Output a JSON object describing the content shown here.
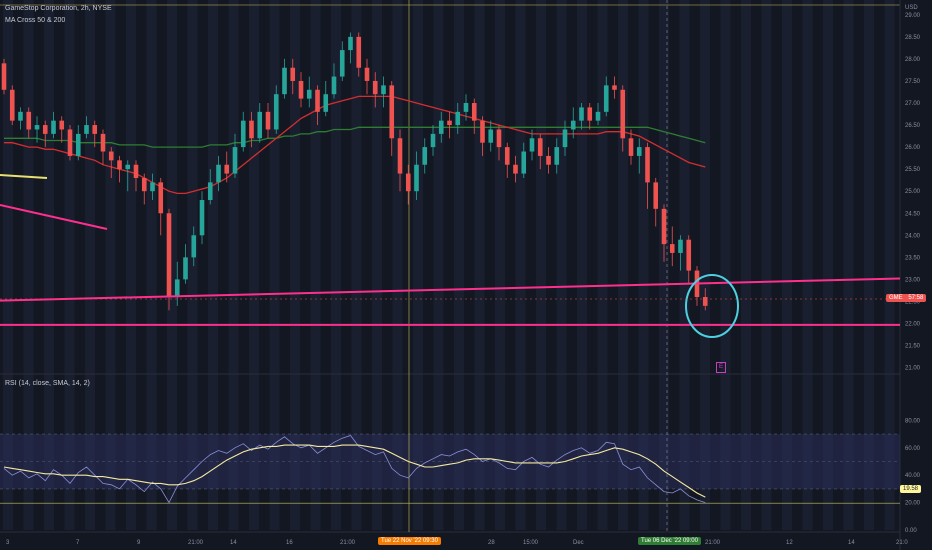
{
  "header": {
    "symbol_line": "GameStop Corporation, 2h, NYSE",
    "indicator_ma": "MA Cross 50 & 200",
    "indicator_rsi": "RSI (14, close, SMA, 14, 2)"
  },
  "price_axis": {
    "currency": "USD",
    "ticks": [
      "29.00",
      "28.50",
      "28.00",
      "27.50",
      "27.00",
      "26.50",
      "26.00",
      "25.50",
      "25.00",
      "24.50",
      "24.00",
      "23.50",
      "23.00",
      "22.50",
      "22.00",
      "21.50",
      "21.00"
    ],
    "price_tag_symbol": "GME",
    "price_tag_value": "57:58"
  },
  "rsi_axis": {
    "ticks": [
      "80.00",
      "60.00",
      "40.00",
      "20.00",
      "0.00"
    ],
    "rsi_tag_value": "19.58"
  },
  "time_axis": {
    "labels": [
      "3",
      "7",
      "9",
      "21:00",
      "14",
      "16",
      "21:00",
      "28",
      "15:00",
      "Dec",
      "21:00",
      "12",
      "14",
      "21:0"
    ],
    "crosshair_label_1": "Tue 22 Nov '22  09:30",
    "crosshair_label_2": "Tue 06 Dec '22  09:00"
  },
  "earnings_marker": "E",
  "colors": {
    "background": "#131722",
    "up_candle": "#26a69a",
    "down_candle": "#ef5350",
    "ma50": "#d32f2f",
    "ma200": "#2e7d32",
    "rsi_line": "#8a8fd8",
    "rsi_ma": "#f5e9a0",
    "support_line": "#ff2f8e",
    "circle": "#4dd0e1",
    "yellow_trend": "#e8e070",
    "crosshair_label_1_bg": "#f57c00",
    "crosshair_label_2_bg": "#2e7d32",
    "price_tag_bg": "#ef5350",
    "rsi_tag_bg": "#fff59d"
  },
  "chart_data": {
    "type": "candlestick",
    "title": "GameStop Corporation, 2h, NYSE",
    "ylim": [
      20.9,
      29.2
    ],
    "rsi_ylim": [
      0,
      100
    ],
    "candles": [
      [
        27.9,
        27.3,
        28.0,
        27.2
      ],
      [
        27.3,
        26.6,
        27.4,
        26.5
      ],
      [
        26.6,
        26.8,
        26.9,
        26.4
      ],
      [
        26.8,
        26.4,
        26.9,
        26.2
      ],
      [
        26.4,
        26.5,
        26.7,
        26.1
      ],
      [
        26.5,
        26.3,
        26.6,
        26.0
      ],
      [
        26.3,
        26.6,
        26.8,
        26.2
      ],
      [
        26.6,
        26.4,
        26.7,
        26.1
      ],
      [
        26.4,
        25.8,
        26.5,
        25.7
      ],
      [
        25.8,
        26.3,
        26.5,
        25.7
      ],
      [
        26.3,
        26.5,
        26.7,
        26.2
      ],
      [
        26.5,
        26.3,
        26.6,
        26.0
      ],
      [
        26.3,
        25.9,
        26.4,
        25.6
      ],
      [
        25.9,
        25.7,
        26.0,
        25.3
      ],
      [
        25.7,
        25.5,
        25.8,
        25.2
      ],
      [
        25.5,
        25.6,
        25.7,
        25.0
      ],
      [
        25.6,
        25.3,
        25.7,
        25.0
      ],
      [
        25.3,
        25.0,
        25.4,
        24.7
      ],
      [
        25.0,
        25.2,
        25.4,
        24.8
      ],
      [
        25.2,
        24.5,
        25.3,
        24.0
      ],
      [
        24.5,
        22.6,
        24.6,
        22.3
      ],
      [
        22.6,
        23.0,
        23.4,
        22.4
      ],
      [
        23.0,
        23.5,
        23.8,
        22.9
      ],
      [
        23.5,
        24.0,
        24.2,
        23.3
      ],
      [
        24.0,
        24.8,
        25.0,
        23.8
      ],
      [
        24.8,
        25.2,
        25.5,
        24.7
      ],
      [
        25.2,
        25.6,
        25.8,
        25.0
      ],
      [
        25.6,
        25.4,
        25.9,
        25.2
      ],
      [
        25.4,
        26.0,
        26.3,
        25.3
      ],
      [
        26.0,
        26.6,
        26.8,
        25.9
      ],
      [
        26.6,
        26.2,
        26.8,
        26.0
      ],
      [
        26.2,
        26.8,
        27.0,
        26.1
      ],
      [
        26.8,
        26.4,
        27.0,
        26.2
      ],
      [
        26.4,
        27.2,
        27.4,
        26.3
      ],
      [
        27.2,
        27.8,
        28.0,
        27.1
      ],
      [
        27.8,
        27.5,
        28.0,
        27.2
      ],
      [
        27.5,
        27.1,
        27.7,
        26.9
      ],
      [
        27.1,
        27.3,
        27.6,
        26.9
      ],
      [
        27.3,
        26.8,
        27.4,
        26.5
      ],
      [
        26.8,
        27.2,
        27.5,
        26.7
      ],
      [
        27.2,
        27.6,
        27.9,
        27.1
      ],
      [
        27.6,
        28.2,
        28.4,
        27.5
      ],
      [
        28.2,
        28.5,
        28.6,
        27.9
      ],
      [
        28.5,
        27.8,
        28.6,
        27.6
      ],
      [
        27.8,
        27.5,
        28.0,
        27.2
      ],
      [
        27.5,
        27.2,
        27.7,
        26.9
      ],
      [
        27.2,
        27.4,
        27.6,
        26.9
      ],
      [
        27.4,
        26.2,
        27.5,
        25.8
      ],
      [
        26.2,
        25.4,
        26.4,
        25.0
      ],
      [
        25.4,
        25.0,
        25.6,
        24.7
      ],
      [
        25.0,
        25.6,
        25.9,
        24.8
      ],
      [
        25.6,
        26.0,
        26.2,
        25.4
      ],
      [
        26.0,
        26.3,
        26.5,
        25.8
      ],
      [
        26.3,
        26.6,
        26.8,
        26.1
      ],
      [
        26.6,
        26.5,
        26.8,
        26.2
      ],
      [
        26.5,
        26.8,
        27.0,
        26.3
      ],
      [
        26.8,
        27.0,
        27.2,
        26.6
      ],
      [
        27.0,
        26.6,
        27.1,
        26.3
      ],
      [
        26.6,
        26.1,
        26.7,
        25.8
      ],
      [
        26.1,
        26.4,
        26.6,
        25.9
      ],
      [
        26.4,
        26.0,
        26.5,
        25.7
      ],
      [
        26.0,
        25.6,
        26.1,
        25.3
      ],
      [
        25.6,
        25.4,
        25.8,
        25.2
      ],
      [
        25.4,
        25.9,
        26.1,
        25.3
      ],
      [
        25.9,
        26.2,
        26.4,
        25.7
      ],
      [
        26.2,
        25.8,
        26.3,
        25.5
      ],
      [
        25.8,
        25.6,
        26.0,
        25.4
      ],
      [
        25.6,
        26.0,
        26.2,
        25.4
      ],
      [
        26.0,
        26.4,
        26.6,
        25.8
      ],
      [
        26.4,
        26.6,
        26.9,
        26.2
      ],
      [
        26.6,
        26.9,
        27.0,
        26.4
      ],
      [
        26.9,
        26.6,
        27.0,
        26.4
      ],
      [
        26.6,
        26.8,
        27.0,
        26.5
      ],
      [
        26.8,
        27.4,
        27.6,
        26.7
      ],
      [
        27.4,
        27.3,
        27.6,
        27.1
      ],
      [
        27.3,
        26.2,
        27.4,
        25.9
      ],
      [
        26.2,
        25.8,
        26.4,
        25.6
      ],
      [
        25.8,
        26.0,
        26.2,
        25.4
      ],
      [
        26.0,
        25.2,
        26.1,
        24.6
      ],
      [
        25.2,
        24.6,
        25.3,
        24.2
      ],
      [
        24.6,
        23.8,
        24.7,
        23.4
      ],
      [
        23.8,
        23.6,
        24.2,
        23.3
      ],
      [
        23.6,
        23.9,
        24.0,
        23.2
      ],
      [
        23.9,
        23.2,
        24.0,
        22.9
      ],
      [
        23.2,
        22.6,
        23.3,
        22.4
      ],
      [
        22.6,
        22.4,
        22.8,
        22.3
      ]
    ],
    "ma50": [
      26.1,
      26.1,
      26.05,
      26.0,
      26.0,
      25.95,
      25.95,
      25.9,
      25.85,
      25.8,
      25.75,
      25.7,
      25.6,
      25.55,
      25.5,
      25.45,
      25.4,
      25.3,
      25.2,
      25.1,
      25.0,
      24.95,
      24.95,
      25.0,
      25.05,
      25.1,
      25.2,
      25.3,
      25.45,
      25.6,
      25.75,
      25.9,
      26.05,
      26.2,
      26.35,
      26.5,
      26.65,
      26.75,
      26.85,
      26.95,
      27.0,
      27.05,
      27.1,
      27.15,
      27.15,
      27.15,
      27.15,
      27.15,
      27.1,
      27.05,
      27.0,
      26.95,
      26.9,
      26.85,
      26.8,
      26.75,
      26.7,
      26.65,
      26.6,
      26.55,
      26.5,
      26.45,
      26.4,
      26.35,
      26.3,
      26.3,
      26.3,
      26.3,
      26.3,
      26.3,
      26.3,
      26.3,
      26.3,
      26.35,
      26.35,
      26.35,
      26.3,
      26.25,
      26.15,
      26.05,
      25.95,
      25.85,
      25.75,
      25.65,
      25.6,
      25.55
    ],
    "ma200": [
      26.2,
      26.2,
      26.2,
      26.2,
      26.2,
      26.15,
      26.15,
      26.15,
      26.15,
      26.1,
      26.1,
      26.1,
      26.1,
      26.1,
      26.05,
      26.05,
      26.05,
      26.05,
      26.0,
      26.0,
      26.0,
      26.0,
      26.0,
      26.0,
      26.0,
      26.05,
      26.05,
      26.05,
      26.1,
      26.1,
      26.15,
      26.15,
      26.2,
      26.2,
      26.25,
      26.25,
      26.3,
      26.3,
      26.35,
      26.35,
      26.4,
      26.4,
      26.4,
      26.45,
      26.45,
      26.45,
      26.45,
      26.45,
      26.45,
      26.45,
      26.45,
      26.45,
      26.45,
      26.45,
      26.45,
      26.45,
      26.45,
      26.45,
      26.45,
      26.45,
      26.45,
      26.45,
      26.45,
      26.45,
      26.45,
      26.45,
      26.45,
      26.45,
      26.45,
      26.45,
      26.45,
      26.45,
      26.45,
      26.45,
      26.45,
      26.45,
      26.45,
      26.45,
      26.45,
      26.4,
      26.35,
      26.3,
      26.25,
      26.2,
      26.15,
      26.1
    ],
    "rsi": [
      45,
      40,
      43,
      38,
      41,
      36,
      44,
      40,
      34,
      42,
      46,
      40,
      34,
      33,
      30,
      37,
      33,
      28,
      35,
      30,
      20,
      32,
      38,
      44,
      50,
      55,
      58,
      56,
      60,
      63,
      58,
      62,
      59,
      64,
      68,
      63,
      60,
      62,
      56,
      60,
      64,
      67,
      69,
      61,
      58,
      55,
      57,
      45,
      40,
      38,
      45,
      49,
      52,
      55,
      54,
      57,
      59,
      55,
      50,
      52,
      49,
      45,
      44,
      50,
      53,
      48,
      46,
      51,
      55,
      58,
      60,
      56,
      58,
      64,
      63,
      48,
      44,
      46,
      38,
      33,
      28,
      27,
      30,
      25,
      22,
      20
    ],
    "rsi_ma": [
      46,
      45,
      44,
      43,
      42,
      41,
      41,
      40,
      40,
      40,
      40,
      39,
      39,
      38,
      37,
      37,
      36,
      35,
      34,
      34,
      33,
      33,
      34,
      36,
      39,
      43,
      47,
      51,
      54,
      57,
      59,
      60,
      61,
      61,
      62,
      62,
      62,
      62,
      61,
      61,
      61,
      62,
      62,
      62,
      61,
      60,
      59,
      56,
      53,
      50,
      48,
      46,
      46,
      47,
      48,
      49,
      51,
      52,
      52,
      52,
      51,
      50,
      49,
      49,
      49,
      49,
      49,
      49,
      50,
      52,
      54,
      55,
      56,
      58,
      60,
      59,
      57,
      55,
      52,
      48,
      43,
      39,
      35,
      31,
      27,
      24
    ],
    "support_lines": [
      {
        "from": 22.52,
        "to": 23.02
      },
      {
        "from": 21.97,
        "to": 21.97
      }
    ]
  }
}
